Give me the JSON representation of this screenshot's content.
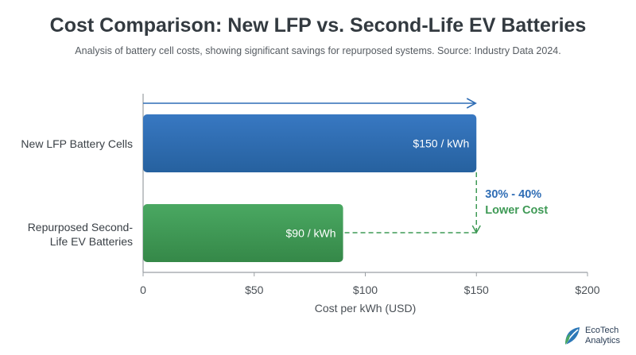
{
  "header": {
    "title": "Cost Comparison: New LFP vs. Second-Life EV Batteries",
    "subtitle": "Analysis of battery cell costs, showing significant savings for repurposed systems. Source: Industry Data 2024."
  },
  "chart_data": {
    "type": "bar",
    "orientation": "horizontal",
    "categories": [
      "New LFP Battery Cells",
      "Repurposed Second-Life EV Batteries"
    ],
    "values": [
      150,
      90
    ],
    "data_labels": [
      "$150 / kWh",
      "$90 / kWh"
    ],
    "colors": [
      "#2f6db5",
      "#3f9a56"
    ],
    "xlabel": "Cost per kWh (USD)",
    "ylabel": "",
    "xlim": [
      0,
      200
    ],
    "x_ticks": [
      0,
      50,
      100,
      150,
      200
    ],
    "x_tick_labels": [
      "0",
      "$50",
      "$100",
      "$150",
      "$200"
    ],
    "annotation": {
      "line1": "30% - 40%",
      "line2": "Lower Cost"
    },
    "grid": false
  },
  "colors": {
    "accent_blue": "#2f6db5",
    "accent_green": "#3f9a56",
    "arrow": "#2f6db5",
    "axis": "#9a9fa4"
  },
  "logo": {
    "line1": "EcoTech",
    "line2": "Analytics",
    "icon": "leaf-logo-icon"
  }
}
